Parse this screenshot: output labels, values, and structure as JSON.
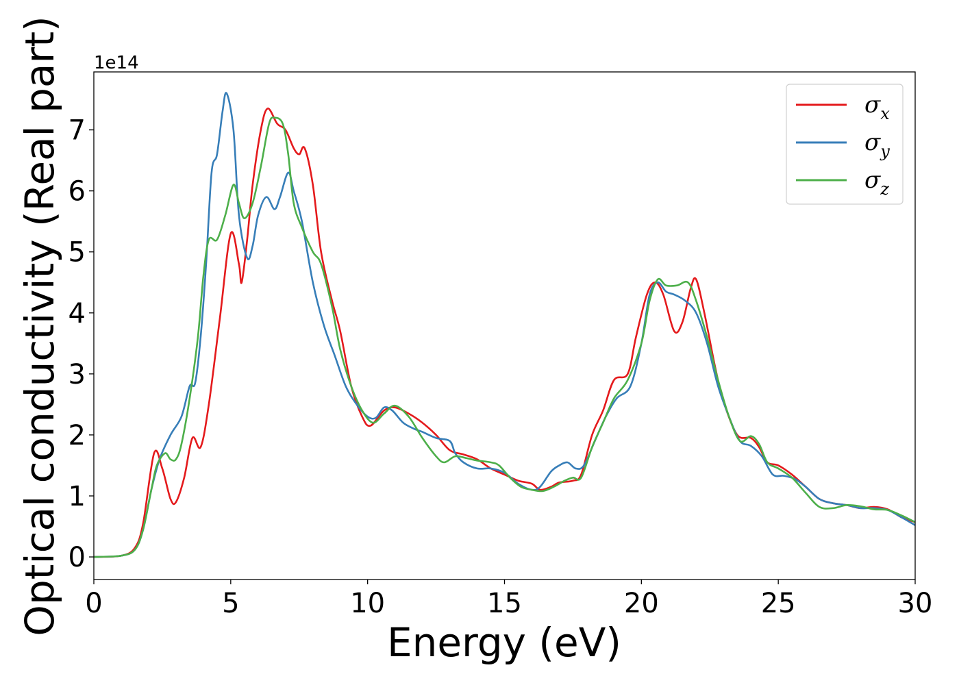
{
  "chart_data": {
    "type": "line",
    "title": "",
    "xlabel": "Energy (eV)",
    "ylabel": "Optical conductivity (Real part)",
    "y_offset_label": "1e14",
    "xlim": [
      0,
      30
    ],
    "ylim": [
      -0.37,
      7.95
    ],
    "xticks": [
      0,
      5,
      10,
      15,
      20,
      25,
      30
    ],
    "yticks": [
      0,
      1,
      2,
      3,
      4,
      5,
      6,
      7
    ],
    "grid": false,
    "legend_position": "top-right",
    "series": [
      {
        "name": "σx",
        "legend_main": "σ",
        "legend_sub": "x",
        "color": "#e41a1c",
        "points": [
          [
            0,
            0
          ],
          [
            1,
            0.02
          ],
          [
            1.5,
            0.15
          ],
          [
            1.8,
            0.55
          ],
          [
            2.2,
            1.7
          ],
          [
            2.5,
            1.45
          ],
          [
            2.8,
            0.95
          ],
          [
            3,
            0.9
          ],
          [
            3.3,
            1.3
          ],
          [
            3.6,
            1.95
          ],
          [
            3.9,
            1.8
          ],
          [
            4.2,
            2.5
          ],
          [
            4.6,
            3.9
          ],
          [
            5,
            5.3
          ],
          [
            5.3,
            4.8
          ],
          [
            5.4,
            4.5
          ],
          [
            5.6,
            5.2
          ],
          [
            5.8,
            6.1
          ],
          [
            6.1,
            7
          ],
          [
            6.35,
            7.35
          ],
          [
            6.7,
            7.1
          ],
          [
            7,
            7
          ],
          [
            7.3,
            6.7
          ],
          [
            7.5,
            6.6
          ],
          [
            7.7,
            6.7
          ],
          [
            8,
            6.1
          ],
          [
            8.3,
            5
          ],
          [
            8.7,
            4.2
          ],
          [
            9,
            3.7
          ],
          [
            9.4,
            2.8
          ],
          [
            9.8,
            2.3
          ],
          [
            10.1,
            2.15
          ],
          [
            10.6,
            2.4
          ],
          [
            11,
            2.45
          ],
          [
            11.5,
            2.35
          ],
          [
            12,
            2.2
          ],
          [
            12.5,
            2
          ],
          [
            13,
            1.75
          ],
          [
            13.5,
            1.68
          ],
          [
            14,
            1.6
          ],
          [
            14.5,
            1.45
          ],
          [
            15,
            1.35
          ],
          [
            15.5,
            1.25
          ],
          [
            16,
            1.2
          ],
          [
            16.3,
            1.1
          ],
          [
            16.7,
            1.15
          ],
          [
            17,
            1.22
          ],
          [
            17.5,
            1.25
          ],
          [
            17.8,
            1.35
          ],
          [
            18.2,
            2
          ],
          [
            18.6,
            2.4
          ],
          [
            19,
            2.9
          ],
          [
            19.5,
            3
          ],
          [
            19.8,
            3.6
          ],
          [
            20.2,
            4.3
          ],
          [
            20.5,
            4.5
          ],
          [
            20.8,
            4.3
          ],
          [
            21.2,
            3.7
          ],
          [
            21.5,
            3.85
          ],
          [
            21.8,
            4.4
          ],
          [
            22,
            4.55
          ],
          [
            22.3,
            4
          ],
          [
            22.7,
            3.1
          ],
          [
            23,
            2.55
          ],
          [
            23.5,
            2
          ],
          [
            24,
            1.95
          ],
          [
            24.3,
            1.8
          ],
          [
            24.6,
            1.55
          ],
          [
            25,
            1.5
          ],
          [
            25.5,
            1.35
          ],
          [
            26,
            1.15
          ],
          [
            26.5,
            0.95
          ],
          [
            27,
            0.88
          ],
          [
            27.5,
            0.85
          ],
          [
            28,
            0.8
          ],
          [
            28.5,
            0.82
          ],
          [
            29,
            0.78
          ],
          [
            29.5,
            0.65
          ],
          [
            30,
            0.57
          ]
        ]
      },
      {
        "name": "σy",
        "legend_main": "σ",
        "legend_sub": "y",
        "color": "#377eb8",
        "points": [
          [
            0,
            0
          ],
          [
            1,
            0.02
          ],
          [
            1.5,
            0.12
          ],
          [
            1.8,
            0.45
          ],
          [
            2.1,
            1.1
          ],
          [
            2.4,
            1.6
          ],
          [
            2.8,
            2
          ],
          [
            3.2,
            2.3
          ],
          [
            3.5,
            2.8
          ],
          [
            3.7,
            2.85
          ],
          [
            3.9,
            3.6
          ],
          [
            4.1,
            4.8
          ],
          [
            4.3,
            6.3
          ],
          [
            4.5,
            6.6
          ],
          [
            4.7,
            7.3
          ],
          [
            4.85,
            7.6
          ],
          [
            5.1,
            7
          ],
          [
            5.3,
            5.6
          ],
          [
            5.6,
            4.9
          ],
          [
            5.8,
            5.1
          ],
          [
            6,
            5.6
          ],
          [
            6.3,
            5.9
          ],
          [
            6.6,
            5.7
          ],
          [
            6.8,
            5.9
          ],
          [
            7.1,
            6.3
          ],
          [
            7.3,
            6
          ],
          [
            7.6,
            5.5
          ],
          [
            8,
            4.5
          ],
          [
            8.4,
            3.8
          ],
          [
            8.8,
            3.3
          ],
          [
            9.2,
            2.8
          ],
          [
            9.6,
            2.5
          ],
          [
            10,
            2.3
          ],
          [
            10.3,
            2.28
          ],
          [
            10.6,
            2.45
          ],
          [
            10.9,
            2.4
          ],
          [
            11.3,
            2.2
          ],
          [
            11.7,
            2.1
          ],
          [
            12,
            2.05
          ],
          [
            12.5,
            1.95
          ],
          [
            13,
            1.9
          ],
          [
            13.2,
            1.7
          ],
          [
            13.5,
            1.55
          ],
          [
            14,
            1.45
          ],
          [
            14.5,
            1.45
          ],
          [
            15,
            1.38
          ],
          [
            15.5,
            1.2
          ],
          [
            16,
            1.1
          ],
          [
            16.3,
            1.15
          ],
          [
            16.7,
            1.4
          ],
          [
            17,
            1.5
          ],
          [
            17.3,
            1.55
          ],
          [
            17.6,
            1.45
          ],
          [
            17.9,
            1.5
          ],
          [
            18.3,
            1.9
          ],
          [
            18.7,
            2.3
          ],
          [
            19.1,
            2.6
          ],
          [
            19.6,
            2.8
          ],
          [
            20,
            3.5
          ],
          [
            20.3,
            4.3
          ],
          [
            20.6,
            4.5
          ],
          [
            20.9,
            4.35
          ],
          [
            21.2,
            4.3
          ],
          [
            21.6,
            4.2
          ],
          [
            22,
            4
          ],
          [
            22.4,
            3.5
          ],
          [
            22.8,
            2.8
          ],
          [
            23.2,
            2.3
          ],
          [
            23.6,
            1.9
          ],
          [
            24,
            1.82
          ],
          [
            24.4,
            1.65
          ],
          [
            24.8,
            1.35
          ],
          [
            25.2,
            1.33
          ],
          [
            25.6,
            1.28
          ],
          [
            26,
            1.15
          ],
          [
            26.5,
            0.95
          ],
          [
            27,
            0.88
          ],
          [
            27.5,
            0.85
          ],
          [
            28,
            0.8
          ],
          [
            28.5,
            0.8
          ],
          [
            29,
            0.77
          ],
          [
            29.5,
            0.65
          ],
          [
            30,
            0.52
          ]
        ]
      },
      {
        "name": "σz",
        "legend_main": "σ",
        "legend_sub": "z",
        "color": "#4daf4a",
        "points": [
          [
            0,
            0
          ],
          [
            1,
            0.02
          ],
          [
            1.5,
            0.12
          ],
          [
            1.8,
            0.45
          ],
          [
            2.1,
            1.1
          ],
          [
            2.3,
            1.5
          ],
          [
            2.6,
            1.7
          ],
          [
            2.8,
            1.6
          ],
          [
            3,
            1.6
          ],
          [
            3.2,
            1.85
          ],
          [
            3.5,
            2.6
          ],
          [
            3.8,
            3.6
          ],
          [
            4,
            4.6
          ],
          [
            4.2,
            5.2
          ],
          [
            4.5,
            5.2
          ],
          [
            4.8,
            5.6
          ],
          [
            5.1,
            6.1
          ],
          [
            5.3,
            5.8
          ],
          [
            5.5,
            5.55
          ],
          [
            5.8,
            5.8
          ],
          [
            6.1,
            6.4
          ],
          [
            6.4,
            7.1
          ],
          [
            6.6,
            7.2
          ],
          [
            6.9,
            7.1
          ],
          [
            7.1,
            6.6
          ],
          [
            7.3,
            5.8
          ],
          [
            7.6,
            5.4
          ],
          [
            8,
            5
          ],
          [
            8.3,
            4.8
          ],
          [
            8.7,
            4.1
          ],
          [
            9,
            3.4
          ],
          [
            9.4,
            2.8
          ],
          [
            9.8,
            2.4
          ],
          [
            10.2,
            2.2
          ],
          [
            10.6,
            2.35
          ],
          [
            11,
            2.48
          ],
          [
            11.5,
            2.3
          ],
          [
            12,
            1.95
          ],
          [
            12.5,
            1.65
          ],
          [
            12.8,
            1.55
          ],
          [
            13.2,
            1.65
          ],
          [
            13.6,
            1.62
          ],
          [
            14,
            1.58
          ],
          [
            14.5,
            1.55
          ],
          [
            14.8,
            1.5
          ],
          [
            15.2,
            1.3
          ],
          [
            15.6,
            1.15
          ],
          [
            16,
            1.1
          ],
          [
            16.4,
            1.08
          ],
          [
            16.8,
            1.15
          ],
          [
            17.2,
            1.25
          ],
          [
            17.5,
            1.3
          ],
          [
            17.8,
            1.3
          ],
          [
            18.2,
            1.8
          ],
          [
            18.6,
            2.2
          ],
          [
            19,
            2.6
          ],
          [
            19.5,
            2.9
          ],
          [
            20,
            3.5
          ],
          [
            20.3,
            4.2
          ],
          [
            20.6,
            4.55
          ],
          [
            20.9,
            4.45
          ],
          [
            21.3,
            4.45
          ],
          [
            21.7,
            4.5
          ],
          [
            22,
            4.2
          ],
          [
            22.4,
            3.6
          ],
          [
            22.8,
            2.9
          ],
          [
            23.2,
            2.3
          ],
          [
            23.6,
            1.9
          ],
          [
            24,
            1.98
          ],
          [
            24.3,
            1.85
          ],
          [
            24.6,
            1.55
          ],
          [
            25,
            1.45
          ],
          [
            25.5,
            1.3
          ],
          [
            26,
            1.05
          ],
          [
            26.5,
            0.82
          ],
          [
            27,
            0.8
          ],
          [
            27.5,
            0.85
          ],
          [
            28,
            0.83
          ],
          [
            28.5,
            0.78
          ],
          [
            29,
            0.77
          ],
          [
            29.5,
            0.68
          ],
          [
            30,
            0.57
          ]
        ]
      }
    ]
  }
}
